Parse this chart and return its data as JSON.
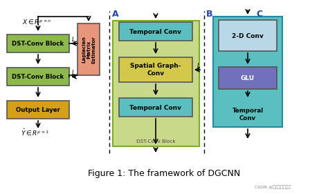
{
  "figure_title": "Figure 1: The framework of DGCNN",
  "bg_color": "#ffffff",
  "colors": {
    "dst_block": "#8db84a",
    "output_layer": "#d4a017",
    "laplacian": "#e8967a",
    "temporal_conv": "#5bbfbf",
    "spatial_graph": "#d4c84a",
    "dst_conv_block_bg": "#c8da8a",
    "section_c_bg": "#5bbfbf",
    "conv_2d": "#b8d8e8",
    "glu": "#7070bb"
  },
  "labels": {
    "dst_block1": "DST-Conv Block",
    "dst_block2": "DST-Conv Block",
    "output_layer": "Output Layer",
    "laplacian": "Laplacian\nMatrix\nEstimator",
    "temporal_conv1": "Temporal Conv",
    "spatial_graph": "Spatial Graph-\nConv",
    "temporal_conv2": "Temporal Conv",
    "dst_conv_block_label": "DST-Conv Block",
    "conv_2d": "2-D Conv",
    "glu": "GLU",
    "temporal_conv_c": "Temporal\nConv",
    "section_a": "A",
    "section_b": "B",
    "section_c": "C",
    "watermark": "CSDN @西西弗的小螺蘑"
  }
}
